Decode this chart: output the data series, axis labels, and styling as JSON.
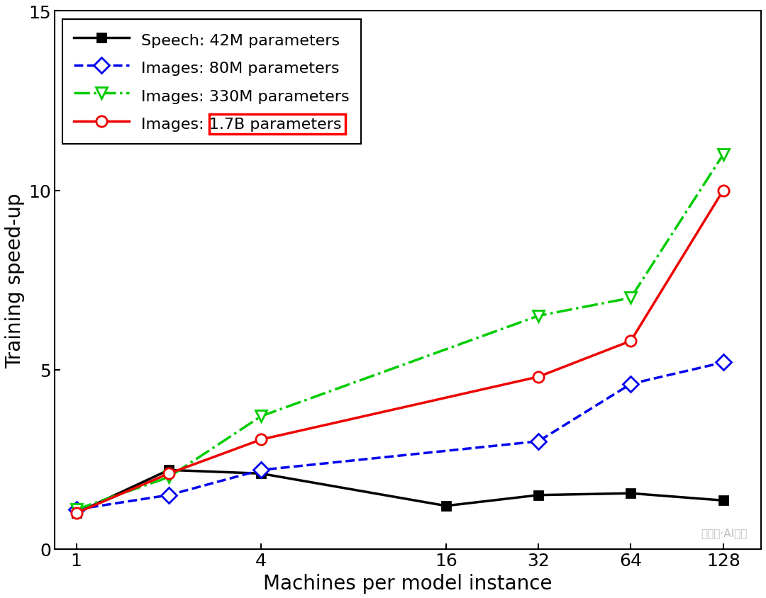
{
  "xlabel": "Machines per model instance",
  "ylabel": "Training speed-up",
  "ylim": [
    0,
    15
  ],
  "yticks": [
    0,
    5,
    10,
    15
  ],
  "xtick_vals": [
    1,
    4,
    16,
    32,
    64,
    128
  ],
  "xtick_labels": [
    "1",
    "4",
    "16",
    "32",
    "64",
    "128"
  ],
  "xlim": [
    0.85,
    170
  ],
  "series": [
    {
      "label": "Speech: 42M parameters",
      "color": "#000000",
      "linestyle": "-",
      "marker": "s",
      "markersize": 9,
      "markerfacecolor": "#000000",
      "linewidth": 2.5,
      "x": [
        1,
        2,
        4,
        16,
        32,
        64,
        128
      ],
      "y": [
        1.0,
        2.2,
        2.1,
        1.2,
        1.5,
        1.55,
        1.35
      ]
    },
    {
      "label": "Images: 80M parameters",
      "color": "#0000EE",
      "linestyle": "--",
      "marker": "D",
      "markersize": 11,
      "markerfacecolor": "white",
      "linewidth": 2.5,
      "x": [
        1,
        2,
        4,
        32,
        64,
        128
      ],
      "y": [
        1.1,
        1.5,
        2.2,
        3.0,
        4.6,
        5.2
      ]
    },
    {
      "label": "Images: 330M parameters",
      "color": "#00CC00",
      "linestyle": "-.",
      "marker": "v",
      "markersize": 12,
      "markerfacecolor": "white",
      "linewidth": 2.5,
      "x": [
        1,
        2,
        4,
        32,
        64,
        128
      ],
      "y": [
        1.1,
        2.0,
        3.7,
        6.5,
        7.0,
        11.0
      ]
    },
    {
      "label": "Images: 1.7B parameters",
      "color": "#EE0000",
      "linestyle": "-",
      "marker": "o",
      "markersize": 11,
      "markerfacecolor": "white",
      "linewidth": 2.5,
      "x": [
        1,
        2,
        4,
        32,
        64,
        128
      ],
      "y": [
        1.0,
        2.1,
        3.05,
        4.8,
        5.8,
        10.0
      ]
    }
  ],
  "legend_labels": [
    "Speech: 42M parameters",
    "Images: 80M parameters",
    "Images: 330M parameters",
    "Images: 1.7B parameters"
  ],
  "red_box_prefix": "Images: ",
  "red_box_full": "Images: 1.7B parameters",
  "font_size_ticks": 18,
  "font_size_labels": 20,
  "font_size_legend": 16,
  "figure_width": 10.8,
  "figure_height": 8.45,
  "dpi": 100
}
